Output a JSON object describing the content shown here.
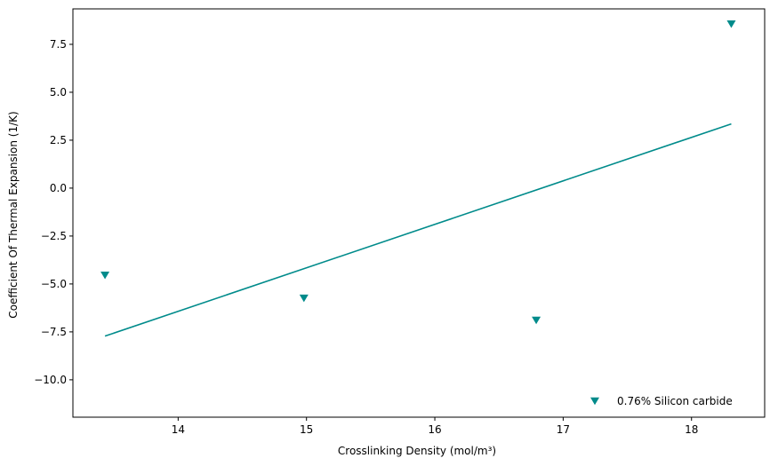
{
  "chart_data": {
    "type": "scatter",
    "title": "",
    "xlabel": "Crosslinking Density (mol/m³)",
    "ylabel": "Coefficient Of Thermal Expansion (1/K)",
    "xlim": [
      13.18,
      18.57
    ],
    "ylim": [
      -11.95,
      9.35
    ],
    "x_ticks": [
      14,
      15,
      16,
      17,
      18
    ],
    "y_ticks": [
      -10.0,
      -7.5,
      -5.0,
      -2.5,
      0.0,
      2.5,
      5.0,
      7.5
    ],
    "x_tick_labels": [
      "14",
      "15",
      "16",
      "17",
      "18"
    ],
    "y_tick_labels": [
      "−10.0",
      "−7.5",
      "−5.0",
      "−2.5",
      "0.0",
      "2.5",
      "5.0",
      "7.5"
    ],
    "grid": false,
    "legend_position": "lower right",
    "series": [
      {
        "name": "0.76% Silicon carbide",
        "marker": "triangle-down",
        "color": "#008b8b",
        "x": [
          13.43,
          14.98,
          16.79,
          18.31
        ],
        "y": [
          -4.55,
          -5.75,
          -6.9,
          8.55
        ]
      }
    ],
    "trend_line": {
      "color": "#008b8b",
      "x": [
        13.43,
        18.31
      ],
      "y": [
        -7.72,
        3.35
      ]
    }
  }
}
